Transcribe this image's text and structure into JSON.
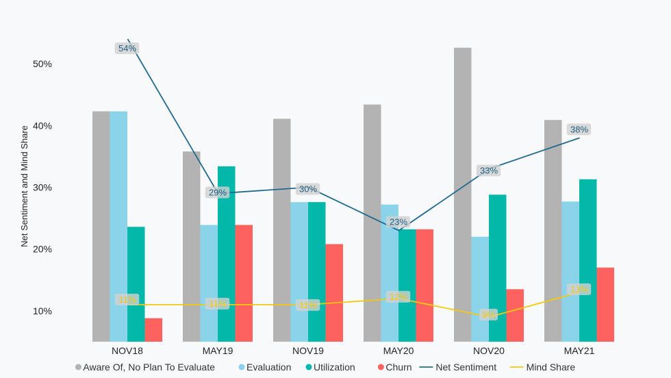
{
  "chart_data": {
    "type": "bar",
    "ylabel": "Net Sentiment and Mind Share",
    "ylim": [
      5,
      57
    ],
    "yticks": [
      10,
      20,
      30,
      40,
      50
    ],
    "ytick_labels": [
      "10%",
      "20%",
      "30%",
      "40%",
      "50%"
    ],
    "categories": [
      "NOV18",
      "MAY19",
      "NOV19",
      "MAY20",
      "NOV20",
      "MAY21"
    ],
    "series": [
      {
        "name": "Aware Of, No Plan To Evaluate",
        "type": "bar",
        "color": "#b3b3b3",
        "values": [
          42.3,
          35.8,
          41.1,
          43.4,
          52.6,
          40.9
        ]
      },
      {
        "name": "Evaluation",
        "type": "bar",
        "color": "#8ad4eb",
        "values": [
          42.3,
          23.9,
          27.6,
          27.2,
          22.0,
          27.7
        ]
      },
      {
        "name": "Utilization",
        "type": "bar",
        "color": "#01b8aa",
        "values": [
          23.6,
          33.4,
          27.6,
          23.2,
          28.8,
          31.3
        ]
      },
      {
        "name": "Churn",
        "type": "bar",
        "color": "#fd625e",
        "values": [
          8.8,
          23.9,
          20.8,
          23.2,
          13.5,
          17.0
        ]
      },
      {
        "name": "Net Sentiment",
        "type": "line",
        "color": "#1f6a8c",
        "values": [
          54,
          29,
          30,
          23,
          33,
          38
        ],
        "labels": [
          "54%",
          "29%",
          "30%",
          "23%",
          "33%",
          "38%"
        ]
      },
      {
        "name": "Mind Share",
        "type": "line",
        "color": "#f2c80f",
        "values": [
          11,
          11,
          11,
          12,
          9,
          13
        ],
        "labels": [
          "11%",
          "11%",
          "11%",
          "12%",
          "9%",
          "13%"
        ]
      }
    ],
    "legend_position": "bottom",
    "grid": false
  }
}
